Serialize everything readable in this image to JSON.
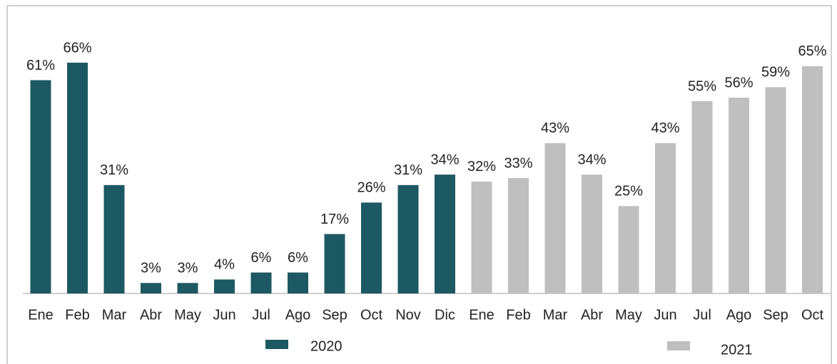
{
  "chart_data": {
    "type": "bar",
    "categories": [
      "Ene",
      "Feb",
      "Mar",
      "Abr",
      "May",
      "Jun",
      "Jul",
      "Ago",
      "Sep",
      "Oct",
      "Nov",
      "Dic",
      "Ene",
      "Feb",
      "Mar",
      "Abr",
      "May",
      "Jun",
      "Jul",
      "Ago",
      "Sep",
      "Oct"
    ],
    "series": [
      {
        "name": "2020",
        "color": "#1d5962",
        "values": [
          61,
          66,
          31,
          3,
          3,
          4,
          6,
          6,
          17,
          26,
          31,
          34,
          null,
          null,
          null,
          null,
          null,
          null,
          null,
          null,
          null,
          null
        ],
        "value_labels": [
          "61%",
          "66%",
          "31%",
          "3%",
          "3%",
          "4%",
          "6%",
          "6%",
          "17%",
          "26%",
          "31%",
          "34%",
          null,
          null,
          null,
          null,
          null,
          null,
          null,
          null,
          null,
          null
        ]
      },
      {
        "name": "2021",
        "color": "#bfbfbf",
        "values": [
          null,
          null,
          null,
          null,
          null,
          null,
          null,
          null,
          null,
          null,
          null,
          null,
          32,
          33,
          43,
          34,
          25,
          43,
          55,
          56,
          59,
          65
        ],
        "value_labels": [
          null,
          null,
          null,
          null,
          null,
          null,
          null,
          null,
          null,
          null,
          null,
          null,
          "32%",
          "33%",
          "43%",
          "34%",
          "25%",
          "43%",
          "55%",
          "56%",
          "59%",
          "65%"
        ]
      }
    ]
  }
}
